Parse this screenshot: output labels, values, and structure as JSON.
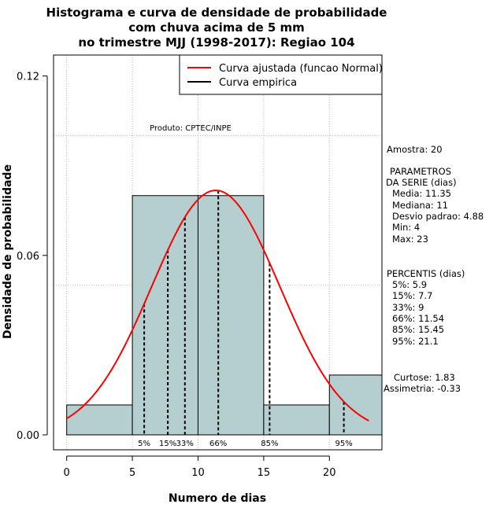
{
  "chart_data": {
    "type": "histogram",
    "title_lines": [
      "Histograma e curva de densidade de probabilidade",
      "com chuva acima de 5 mm",
      "no trimestre MJJ (1998-2017): Regiao 104"
    ],
    "xlabel": "Numero de dias",
    "ylabel": "Densidade de probabilidade",
    "xlim": [
      -1,
      24
    ],
    "ylim": [
      -0.005,
      0.127
    ],
    "x_ticks": [
      0,
      5,
      10,
      15,
      20
    ],
    "y_ticks": [
      0.0,
      0.06,
      0.12
    ],
    "y_tick_labels": [
      "0.00",
      "0.06",
      "0.12"
    ],
    "grid_x": [
      0,
      5,
      10,
      15,
      20
    ],
    "grid_y": [
      0.05,
      0.1
    ],
    "bins": [
      {
        "x0": 0,
        "x1": 5,
        "density": 0.01
      },
      {
        "x0": 5,
        "x1": 10,
        "density": 0.08
      },
      {
        "x0": 10,
        "x1": 15,
        "density": 0.08
      },
      {
        "x0": 15,
        "x1": 20,
        "density": 0.01
      },
      {
        "x0": 20,
        "x1": 24,
        "density": 0.02
      }
    ],
    "normal_fit": {
      "mean": 11.35,
      "sd": 4.88,
      "x_from": 0,
      "x_to": 23
    },
    "percentile_lines": [
      {
        "label": "5%",
        "x": 5.9
      },
      {
        "label": "15%",
        "x": 7.7
      },
      {
        "label": "33%",
        "x": 9
      },
      {
        "label": "66%",
        "x": 11.54
      },
      {
        "label": "85%",
        "x": 15.45
      },
      {
        "label": "95%",
        "x": 21.1
      }
    ],
    "legend": [
      {
        "label": "Curva ajustada (funcao Normal)",
        "color": "#ff0000"
      },
      {
        "label": "Curva empirica",
        "color": "#000000"
      }
    ],
    "produto": "Produto: CPTEC/INPE",
    "bar_color": "#b5cecf",
    "curve_color": "#ff0000",
    "side_text": {
      "amostra": "Amostra: 20",
      "parametros_title": "PARAMETROS",
      "parametros_sub": "DA SERIE (dias)",
      "parametros": [
        "Media: 11.35",
        "Mediana: 11",
        "Desvio padrao: 4.88",
        "Min: 4",
        "Max: 23"
      ],
      "percentis_title": "PERCENTIS (dias)",
      "percentis": [
        "5%: 5.9",
        "15%: 7.7",
        "33%: 9",
        "66%: 11.54",
        "85%: 15.45",
        "95%: 21.1"
      ],
      "curtose": "Curtose: 1.83",
      "assimetria": "Assimetria: -0.33"
    }
  }
}
